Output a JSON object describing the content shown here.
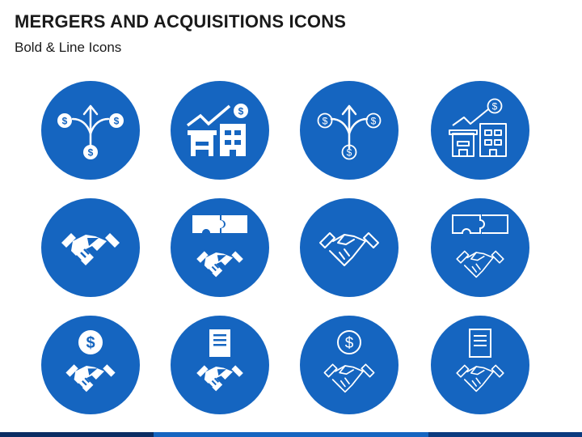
{
  "slide": {
    "title": "MERGERS AND ACQUISITIONS ICONS",
    "subtitle": "Bold & Line Icons"
  },
  "colors": {
    "circle": "#1565c0",
    "glyph": "#ffffff",
    "footer_dark": "#0a2d63"
  },
  "icons": [
    {
      "name": "split-arrow-money-bold-icon",
      "style": "bold"
    },
    {
      "name": "growth-buildings-bold-icon",
      "style": "bold"
    },
    {
      "name": "split-arrow-money-line-icon",
      "style": "line"
    },
    {
      "name": "growth-buildings-line-icon",
      "style": "line"
    },
    {
      "name": "handshake-bold-icon",
      "style": "bold"
    },
    {
      "name": "puzzle-handshake-bold-icon",
      "style": "bold"
    },
    {
      "name": "handshake-line-icon",
      "style": "line"
    },
    {
      "name": "puzzle-handshake-line-icon",
      "style": "line"
    },
    {
      "name": "dollar-handshake-bold-icon",
      "style": "bold"
    },
    {
      "name": "document-handshake-bold-icon",
      "style": "bold"
    },
    {
      "name": "dollar-handshake-line-icon",
      "style": "line"
    },
    {
      "name": "document-handshake-line-icon",
      "style": "line"
    }
  ]
}
